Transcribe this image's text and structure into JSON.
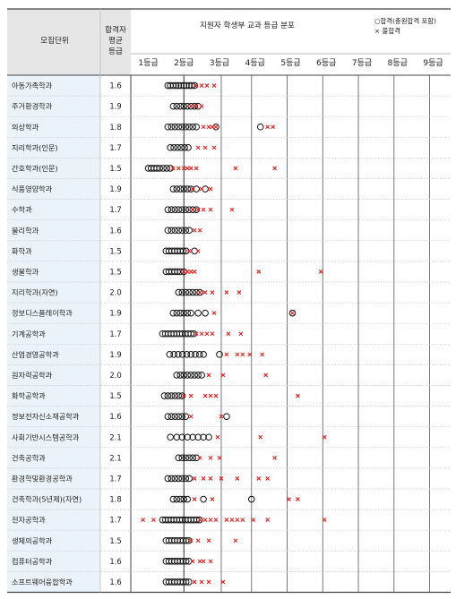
{
  "header": {
    "col_unit": "모집단위",
    "col_grade": [
      "합격자",
      "평균",
      "등급"
    ],
    "chart_title": "지원자 학생부 교과 등급 분포",
    "legend_pass": "○합격(충원합격 포함)",
    "legend_fail": "× 불합격"
  },
  "colors": {
    "pass": "#111111",
    "fail": "#e02020",
    "row_bg": "#eaf3f9",
    "grid": "#555555"
  },
  "chart_data": {
    "type": "scatter",
    "title": "지원자 학생부 교과 등급 분포",
    "xlim": [
      0.8,
      9.4
    ],
    "x_ticks": [
      1,
      2,
      3,
      4,
      5,
      6,
      7,
      8,
      9
    ],
    "x_tick_labels": [
      "1등급",
      "2등급",
      "3등급",
      "4등급",
      "5등급",
      "6등급",
      "7등급",
      "8등급",
      "9등급"
    ],
    "reference_line": 2,
    "series_names": [
      "합격(충원합격 포함)",
      "불합격"
    ],
    "rows": [
      {
        "unit": "아동가족학과",
        "avg": "1.6",
        "pass": [
          1.55,
          1.62,
          1.7,
          1.78,
          1.85,
          1.92,
          2.0,
          2.07,
          2.15,
          2.22,
          2.3
        ],
        "fail": [
          2.35,
          2.5,
          2.65,
          2.85
        ]
      },
      {
        "unit": "주거환경학과",
        "avg": "1.9",
        "pass": [
          1.7,
          1.8,
          1.9,
          2.0,
          2.1,
          2.2,
          2.3,
          2.4
        ],
        "fail": [
          2.2,
          2.35,
          2.5
        ]
      },
      {
        "unit": "의상학과",
        "avg": "1.8",
        "pass": [
          1.55,
          1.65,
          1.75,
          1.85,
          1.95,
          2.05,
          2.15,
          2.25,
          2.35,
          2.9,
          4.15
        ],
        "fail": [
          2.55,
          2.7,
          2.8,
          2.9,
          4.35,
          4.5
        ]
      },
      {
        "unit": "지리학과(인문)",
        "avg": "1.7",
        "pass": [
          1.62,
          1.72,
          1.82,
          1.92,
          2.02,
          2.12
        ],
        "fail": [
          2.4,
          2.6,
          2.85
        ]
      },
      {
        "unit": "간호학과(인문)",
        "avg": "1.5",
        "pass": [
          1.0,
          1.08,
          1.16,
          1.24,
          1.32,
          1.42,
          1.52,
          1.62
        ],
        "fail": [
          1.7,
          1.85,
          2.0,
          2.1,
          2.2,
          2.35,
          3.45,
          4.55
        ]
      },
      {
        "unit": "식품영양학과",
        "avg": "1.9",
        "pass": [
          1.7,
          1.8,
          1.9,
          2.0,
          2.1,
          2.2,
          2.35,
          2.6
        ],
        "fail": [
          2.25,
          2.5,
          2.75
        ]
      },
      {
        "unit": "수학과",
        "avg": "1.7",
        "pass": [
          1.55,
          1.65,
          1.75,
          1.85,
          1.95,
          2.05,
          2.15,
          2.25,
          2.35
        ],
        "fail": [
          2.25,
          2.4,
          2.55,
          2.75,
          3.35
        ]
      },
      {
        "unit": "물리학과",
        "avg": "1.6",
        "pass": [
          1.55,
          1.65,
          1.75,
          1.85,
          1.95,
          2.05,
          2.15
        ],
        "fail": [
          2.3,
          2.45
        ]
      },
      {
        "unit": "화학과",
        "avg": "1.5",
        "pass": [
          1.5,
          1.58,
          1.66,
          1.74,
          1.82,
          1.9,
          1.98,
          2.06,
          2.3
        ],
        "fail": [
          2.15,
          2.4
        ]
      },
      {
        "unit": "생물학과",
        "avg": "1.5",
        "pass": [
          1.5,
          1.58,
          1.66,
          1.74,
          1.82,
          1.9,
          2.0
        ],
        "fail": [
          2.0,
          2.1,
          2.2,
          2.3,
          4.1,
          5.85
        ]
      },
      {
        "unit": "지리학과(자연)",
        "avg": "2.0",
        "pass": [
          1.85,
          1.95,
          2.05,
          2.15,
          2.25,
          2.35,
          2.45
        ],
        "fail": [
          2.45,
          2.6,
          2.8,
          3.2,
          3.55
        ]
      },
      {
        "unit": "정보디스플레이학과",
        "avg": "1.9",
        "pass": [
          1.7,
          1.8,
          1.9,
          2.0,
          2.1,
          2.2,
          2.4,
          2.6,
          5.05
        ],
        "fail": [
          2.85,
          5.05
        ]
      },
      {
        "unit": "기계공학과",
        "avg": "1.7",
        "pass": [
          1.4,
          1.48,
          1.56,
          1.64,
          1.72,
          1.8,
          1.88,
          1.96,
          2.04,
          2.12,
          2.2,
          2.28
        ],
        "fail": [
          2.35,
          2.5,
          2.65,
          2.8,
          3.25,
          3.6
        ]
      },
      {
        "unit": "산업경영공학과",
        "avg": "1.9",
        "pass": [
          1.6,
          1.72,
          1.84,
          1.96,
          2.08,
          2.2,
          2.32,
          2.44,
          2.55,
          3.0
        ],
        "fail": [
          3.2,
          3.5,
          3.65,
          3.85,
          4.2
        ]
      },
      {
        "unit": "원자력공학과",
        "avg": "2.0",
        "pass": [
          1.8,
          1.9,
          2.0,
          2.1,
          2.2,
          2.3,
          2.4,
          2.5
        ],
        "fail": [
          2.7,
          3.1,
          4.3
        ]
      },
      {
        "unit": "화학공학과",
        "avg": "1.5",
        "pass": [
          1.45,
          1.55,
          1.65,
          1.75,
          1.85,
          1.95
        ],
        "fail": [
          2.0,
          2.2,
          2.6,
          2.75,
          2.9,
          5.2
        ]
      },
      {
        "unit": "정보전자신소재공학과",
        "avg": "1.6",
        "pass": [
          1.55,
          1.65,
          1.75,
          1.85,
          1.95,
          2.05,
          3.2
        ],
        "fail": [
          2.2,
          3.05
        ]
      },
      {
        "unit": "사회기반시스템공학과",
        "avg": "2.1",
        "pass": [
          1.62,
          1.8,
          1.95,
          2.1,
          2.25,
          2.4,
          2.55,
          2.7
        ],
        "fail": [
          2.95,
          4.15,
          5.95
        ]
      },
      {
        "unit": "건축공학과",
        "avg": "2.1",
        "pass": [
          1.85,
          1.95,
          2.05,
          2.15,
          2.25,
          2.35
        ],
        "fail": [
          2.45,
          2.75,
          3.0,
          4.55
        ]
      },
      {
        "unit": "환경학및환경공학과",
        "avg": "1.7",
        "pass": [
          1.55,
          1.65,
          1.75,
          1.85,
          1.95,
          2.05,
          2.15
        ],
        "fail": [
          2.3,
          2.55,
          2.75,
          3.05,
          3.5,
          4.1,
          4.35
        ]
      },
      {
        "unit": "건축학과(5년제)(자연)",
        "avg": "1.8",
        "pass": [
          1.7,
          1.8,
          1.9,
          2.0,
          2.1,
          2.55,
          3.9
        ],
        "fail": [
          2.3,
          2.8,
          4.95,
          5.2
        ]
      },
      {
        "unit": "전자공학과",
        "avg": "1.7",
        "pass": [
          1.4,
          1.48,
          1.56,
          1.64,
          1.72,
          1.8,
          1.88,
          1.96,
          2.04,
          2.12,
          2.2,
          2.28,
          2.36,
          2.44
        ],
        "fail": [
          0.85,
          1.15,
          2.45,
          2.6,
          2.75,
          2.9,
          3.2,
          3.35,
          3.5,
          3.65,
          3.95,
          4.35,
          5.95
        ]
      },
      {
        "unit": "생체의공학과",
        "avg": "1.5",
        "pass": [
          1.5,
          1.58,
          1.66,
          1.74,
          1.82,
          1.9,
          1.98,
          2.06,
          2.14
        ],
        "fail": [
          2.2,
          2.4,
          2.7,
          3.45
        ]
      },
      {
        "unit": "컴퓨터공학과",
        "avg": "1.6",
        "pass": [
          1.5,
          1.58,
          1.66,
          1.74,
          1.82,
          1.9,
          1.98,
          2.06,
          2.14
        ],
        "fail": [
          2.25,
          2.45,
          2.55,
          2.75
        ]
      },
      {
        "unit": "소프트웨어융합학과",
        "avg": "1.6",
        "pass": [
          1.5,
          1.58,
          1.66,
          1.74,
          1.82,
          1.9,
          1.98,
          2.06,
          2.14
        ],
        "fail": [
          2.3,
          2.5,
          2.7,
          3.1
        ]
      }
    ]
  }
}
